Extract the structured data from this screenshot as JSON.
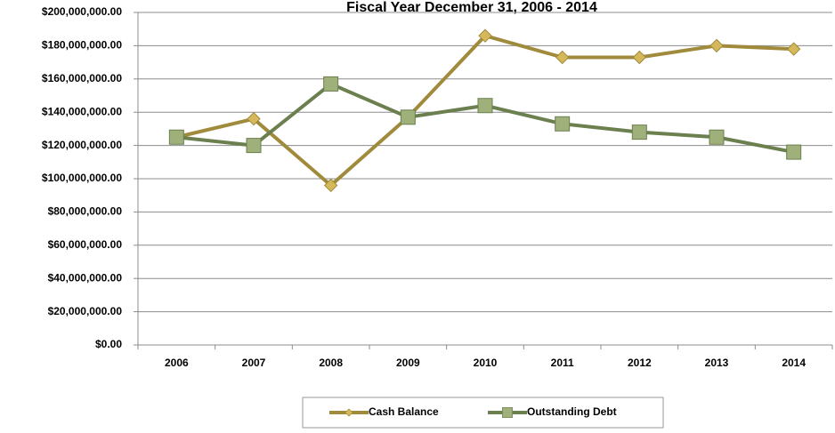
{
  "chart_data": {
    "type": "line",
    "title": "Fiscal Year December 31, 2006 - 2014",
    "categories": [
      "2006",
      "2007",
      "2008",
      "2009",
      "2010",
      "2011",
      "2012",
      "2013",
      "2014"
    ],
    "series": [
      {
        "name": "Cash Balance",
        "color": "#a08a3c",
        "marker_color": "#d4b85a",
        "marker": "diamond",
        "values": [
          125000000,
          136000000,
          96000000,
          137000000,
          186000000,
          173000000,
          173000000,
          180000000,
          178000000
        ]
      },
      {
        "name": "Outstanding Debt",
        "color": "#6b7f4f",
        "marker_color": "#9fb07a",
        "marker": "square",
        "values": [
          125000000,
          120000000,
          157000000,
          137000000,
          144000000,
          133000000,
          128000000,
          125000000,
          116000000
        ]
      }
    ],
    "ylim": [
      0,
      200000000
    ],
    "yticks": [
      {
        "value": 0,
        "label": "$0.00"
      },
      {
        "value": 20000000,
        "label": "$20,000,000.00"
      },
      {
        "value": 40000000,
        "label": "$40,000,000.00"
      },
      {
        "value": 60000000,
        "label": "$60,000,000.00"
      },
      {
        "value": 80000000,
        "label": "$80,000,000.00"
      },
      {
        "value": 100000000,
        "label": "$100,000,000.00"
      },
      {
        "value": 120000000,
        "label": "$120,000,000.00"
      },
      {
        "value": 140000000,
        "label": "$140,000,000.00"
      },
      {
        "value": 160000000,
        "label": "$160,000,000.00"
      },
      {
        "value": 180000000,
        "label": "$180,000,000.00"
      },
      {
        "value": 200000000,
        "label": "$200,000,000.00"
      }
    ],
    "grid": true,
    "legend": "bottom"
  }
}
